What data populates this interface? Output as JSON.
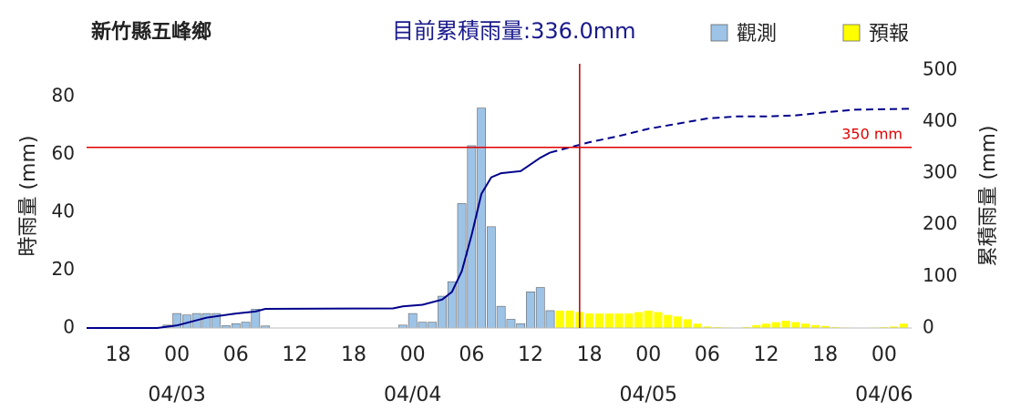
{
  "chart_data": {
    "type": "bar",
    "title": "新竹縣五峰鄉",
    "subtitle": "目前累積雨量:336.0mm",
    "y_label": "時雨量 (mm)",
    "y2_label": "累積雨量 (mm)",
    "xlim": [
      -9.2,
      74.8
    ],
    "xticks": [
      {
        "value": -6,
        "label": "18"
      },
      {
        "value": 0,
        "label": "00"
      },
      {
        "value": 6,
        "label": "06"
      },
      {
        "value": 12,
        "label": "12"
      },
      {
        "value": 18,
        "label": "18"
      },
      {
        "value": 24,
        "label": "00"
      },
      {
        "value": 30,
        "label": "06"
      },
      {
        "value": 36,
        "label": "12"
      },
      {
        "value": 42,
        "label": "18"
      },
      {
        "value": 48,
        "label": "00"
      },
      {
        "value": 54,
        "label": "06"
      },
      {
        "value": 60,
        "label": "12"
      },
      {
        "value": 66,
        "label": "18"
      },
      {
        "value": 72,
        "label": "00"
      }
    ],
    "date_ticks": [
      {
        "value": 0,
        "label": "04/03"
      },
      {
        "value": 24,
        "label": "04/04"
      },
      {
        "value": 48,
        "label": "04/05"
      },
      {
        "value": 72,
        "label": "04/06"
      }
    ],
    "ylim": [
      0,
      91.3
    ],
    "yticks": [
      0,
      20,
      40,
      60,
      80
    ],
    "y2lim": [
      0,
      512
    ],
    "y2ticks": [
      0,
      100,
      200,
      300,
      400,
      500
    ],
    "threshold": {
      "value": 350,
      "label": "350 mm",
      "color": "#e00000"
    },
    "now_line": 41,
    "series": [
      {
        "name": "觀測",
        "kind": "bar",
        "color": "#9dc3e6",
        "x": [
          -1,
          0,
          1,
          2,
          3,
          4,
          5,
          6,
          7,
          8,
          9,
          23,
          24,
          25,
          26,
          27,
          28,
          29,
          30,
          31,
          32,
          33,
          34,
          35,
          36,
          37,
          38
        ],
        "values": [
          1,
          5,
          4.5,
          5,
          5,
          5,
          0.8,
          1.5,
          2,
          6.5,
          0.7,
          1,
          5,
          2,
          2,
          11,
          16,
          43,
          63,
          76,
          35,
          7.5,
          3,
          1.5,
          12.5,
          14,
          6
        ]
      },
      {
        "name": "預報",
        "kind": "bar",
        "color": "#ffff00",
        "x": [
          39,
          40,
          41,
          42,
          43,
          44,
          45,
          46,
          47,
          48,
          49,
          50,
          51,
          52,
          53,
          54,
          55,
          56,
          57,
          58,
          59,
          60,
          61,
          62,
          63,
          64,
          65,
          66,
          67,
          68,
          69,
          70,
          71,
          72,
          73,
          74
        ],
        "values": [
          6,
          6,
          5.5,
          5,
          5,
          5,
          5,
          5,
          5.5,
          6,
          5.5,
          4.5,
          4,
          3,
          1.5,
          0.5,
          0.3,
          0.2,
          0.1,
          0.3,
          1,
          1.5,
          2,
          2.5,
          2,
          1.5,
          1,
          0.7,
          0.3,
          0.2,
          0.1,
          0.1,
          0.2,
          0.3,
          0.5,
          1.5
        ]
      },
      {
        "kind": "line",
        "axis": "y2",
        "color": "#00008b",
        "dashed": false,
        "x": [
          -9.2,
          -2,
          0,
          3,
          6,
          8,
          9,
          22,
          23,
          25,
          27,
          28,
          29,
          30,
          31,
          32,
          33,
          35,
          37,
          38
        ],
        "values": [
          0,
          0,
          5,
          20,
          28,
          32,
          37,
          38,
          42,
          45,
          55,
          70,
          110,
          180,
          260,
          292,
          300,
          304,
          330,
          340
        ]
      },
      {
        "kind": "line",
        "axis": "y2",
        "color": "#00008b",
        "dashed": true,
        "x": [
          38,
          40,
          42,
          45,
          48,
          51,
          54,
          57,
          60,
          63,
          66,
          69,
          72,
          74.8
        ],
        "values": [
          340,
          350,
          360,
          372,
          386,
          396,
          406,
          410,
          410,
          412,
          418,
          423,
          424,
          425
        ]
      }
    ]
  }
}
